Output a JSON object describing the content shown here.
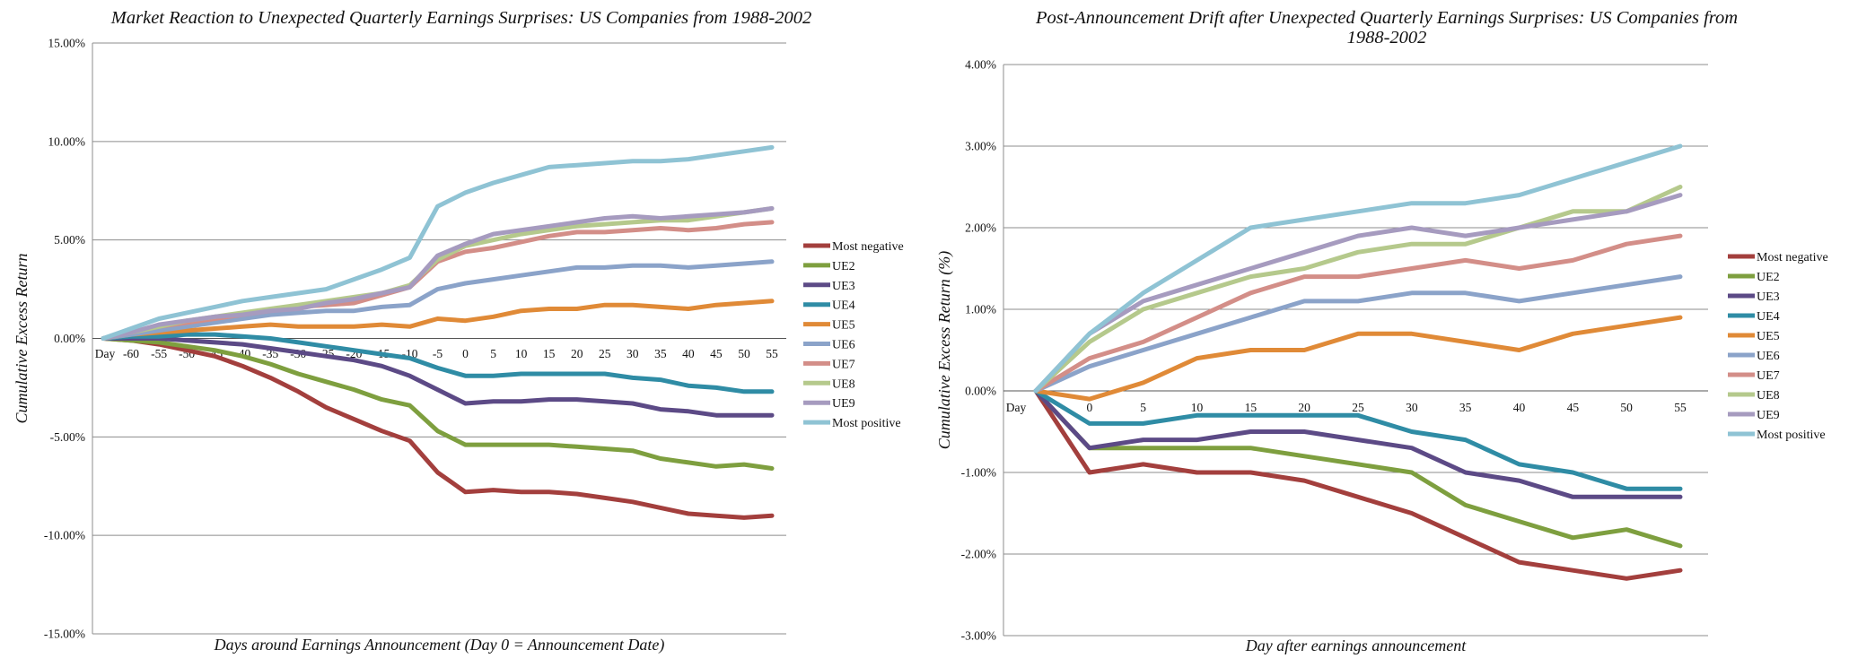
{
  "chart_data": [
    {
      "type": "line",
      "title": "Market Reaction to Unexpected Quarterly Earnings Surprises: US Companies from 1988-2002",
      "xlabel": "Days around Earnings Announcement (Day 0 = Announcement Date)",
      "ylabel": "Cumulative Excess Return",
      "categories": [
        "Day",
        "-60",
        "-55",
        "-50",
        "-45",
        "-40",
        "-35",
        "-30",
        "-25",
        "-20",
        "-15",
        "-10",
        "-5",
        "0",
        "5",
        "10",
        "15",
        "20",
        "25",
        "30",
        "35",
        "40",
        "45",
        "50",
        "55"
      ],
      "ylim": [
        -15,
        15
      ],
      "yticks": [
        "-15.00%",
        "-10.00%",
        "-5.00%",
        "0.00%",
        "5.00%",
        "10.00%",
        "15.00%"
      ],
      "grid": true,
      "legend_position": "right",
      "series": [
        {
          "name": "Most negative",
          "color": "#A33F3D",
          "values": [
            0,
            -0.1,
            -0.3,
            -0.6,
            -0.9,
            -1.4,
            -2.0,
            -2.7,
            -3.5,
            -4.1,
            -4.7,
            -5.2,
            -6.8,
            -7.8,
            -7.7,
            -7.8,
            -7.8,
            -7.9,
            -8.1,
            -8.3,
            -8.6,
            -8.9,
            -9.0,
            -9.1,
            -9.0
          ]
        },
        {
          "name": "UE2",
          "color": "#7E9F3F",
          "values": [
            0,
            -0.1,
            -0.2,
            -0.4,
            -0.6,
            -0.9,
            -1.3,
            -1.8,
            -2.2,
            -2.6,
            -3.1,
            -3.4,
            -4.7,
            -5.4,
            -5.4,
            -5.4,
            -5.4,
            -5.5,
            -5.6,
            -5.7,
            -6.1,
            -6.3,
            -6.5,
            -6.4,
            -6.6
          ]
        },
        {
          "name": "UE3",
          "color": "#5C4A86",
          "values": [
            0,
            0,
            0,
            -0.1,
            -0.2,
            -0.3,
            -0.5,
            -0.7,
            -0.9,
            -1.1,
            -1.4,
            -1.9,
            -2.6,
            -3.3,
            -3.2,
            -3.2,
            -3.1,
            -3.1,
            -3.2,
            -3.3,
            -3.6,
            -3.7,
            -3.9,
            -3.9,
            -3.9
          ]
        },
        {
          "name": "UE4",
          "color": "#2F8CA5",
          "values": [
            0,
            0.1,
            0.1,
            0.2,
            0.2,
            0.1,
            0,
            -0.2,
            -0.4,
            -0.6,
            -0.8,
            -1.0,
            -1.5,
            -1.9,
            -1.9,
            -1.8,
            -1.8,
            -1.8,
            -1.8,
            -2.0,
            -2.1,
            -2.4,
            -2.5,
            -2.7,
            -2.7
          ]
        },
        {
          "name": "UE5",
          "color": "#E08A37",
          "values": [
            0,
            0.2,
            0.3,
            0.4,
            0.5,
            0.6,
            0.7,
            0.6,
            0.6,
            0.6,
            0.7,
            0.6,
            1.0,
            0.9,
            1.1,
            1.4,
            1.5,
            1.5,
            1.7,
            1.7,
            1.6,
            1.5,
            1.7,
            1.8,
            1.9
          ]
        },
        {
          "name": "UE6",
          "color": "#8BA3C9",
          "values": [
            0,
            0.2,
            0.4,
            0.6,
            0.8,
            1.0,
            1.2,
            1.3,
            1.4,
            1.4,
            1.6,
            1.7,
            2.5,
            2.8,
            3.0,
            3.2,
            3.4,
            3.6,
            3.6,
            3.7,
            3.7,
            3.6,
            3.7,
            3.8,
            3.9
          ]
        },
        {
          "name": "UE7",
          "color": "#D38E88",
          "values": [
            0,
            0.3,
            0.6,
            0.8,
            1.0,
            1.2,
            1.4,
            1.6,
            1.7,
            1.8,
            2.2,
            2.6,
            3.9,
            4.4,
            4.6,
            4.9,
            5.2,
            5.4,
            5.4,
            5.5,
            5.6,
            5.5,
            5.6,
            5.8,
            5.9
          ]
        },
        {
          "name": "UE8",
          "color": "#B5C98C",
          "values": [
            0,
            0.3,
            0.6,
            0.9,
            1.1,
            1.3,
            1.5,
            1.7,
            1.9,
            2.1,
            2.3,
            2.7,
            4.0,
            4.7,
            5.0,
            5.3,
            5.5,
            5.7,
            5.8,
            5.9,
            6.0,
            6.0,
            6.2,
            6.4,
            6.6
          ]
        },
        {
          "name": "UE9",
          "color": "#A69BBF",
          "values": [
            0,
            0.3,
            0.7,
            0.9,
            1.1,
            1.2,
            1.4,
            1.5,
            1.8,
            2.0,
            2.3,
            2.6,
            4.2,
            4.8,
            5.3,
            5.5,
            5.7,
            5.9,
            6.1,
            6.2,
            6.1,
            6.2,
            6.3,
            6.4,
            6.6
          ]
        },
        {
          "name": "Most positive",
          "color": "#8FC3D4",
          "values": [
            0,
            0.5,
            1.0,
            1.3,
            1.6,
            1.9,
            2.1,
            2.3,
            2.5,
            3.0,
            3.5,
            4.1,
            6.7,
            7.4,
            7.9,
            8.3,
            8.7,
            8.8,
            8.9,
            9.0,
            9.0,
            9.1,
            9.3,
            9.5,
            9.7
          ]
        }
      ]
    },
    {
      "type": "line",
      "title": "Post-Announcement Drift after Unexpected Quarterly Earnings Surprises: US Companies from 1988-2002",
      "title_lines": [
        "Post-Announcement Drift after Unexpected Quarterly Earnings Surprises: US Companies from",
        "1988-2002"
      ],
      "xlabel": "Day after earnings announcement",
      "ylabel": "Cumulative Excess Return (%)",
      "categories": [
        "Day",
        "0",
        "5",
        "10",
        "15",
        "20",
        "25",
        "30",
        "35",
        "40",
        "45",
        "50",
        "55"
      ],
      "ylim": [
        -3,
        4
      ],
      "yticks": [
        "-3.00%",
        "-2.00%",
        "-1.00%",
        "0.00%",
        "1.00%",
        "2.00%",
        "3.00%",
        "4.00%"
      ],
      "grid": true,
      "legend_position": "right",
      "series": [
        {
          "name": "Most negative",
          "color": "#A33F3D",
          "values": [
            0,
            -1.0,
            -0.9,
            -1.0,
            -1.0,
            -1.1,
            -1.3,
            -1.5,
            -1.8,
            -2.1,
            -2.2,
            -2.3,
            -2.2
          ]
        },
        {
          "name": "UE2",
          "color": "#7E9F3F",
          "values": [
            0,
            -0.7,
            -0.7,
            -0.7,
            -0.7,
            -0.8,
            -0.9,
            -1.0,
            -1.4,
            -1.6,
            -1.8,
            -1.7,
            -1.9
          ]
        },
        {
          "name": "UE3",
          "color": "#5C4A86",
          "values": [
            0,
            -0.7,
            -0.6,
            -0.6,
            -0.5,
            -0.5,
            -0.6,
            -0.7,
            -1.0,
            -1.1,
            -1.3,
            -1.3,
            -1.3
          ]
        },
        {
          "name": "UE4",
          "color": "#2F8CA5",
          "values": [
            0,
            -0.4,
            -0.4,
            -0.3,
            -0.3,
            -0.3,
            -0.3,
            -0.5,
            -0.6,
            -0.9,
            -1.0,
            -1.2,
            -1.2
          ]
        },
        {
          "name": "UE5",
          "color": "#E08A37",
          "values": [
            0,
            -0.1,
            0.1,
            0.4,
            0.5,
            0.5,
            0.7,
            0.7,
            0.6,
            0.5,
            0.7,
            0.8,
            0.9
          ]
        },
        {
          "name": "UE6",
          "color": "#8BA3C9",
          "values": [
            0,
            0.3,
            0.5,
            0.7,
            0.9,
            1.1,
            1.1,
            1.2,
            1.2,
            1.1,
            1.2,
            1.3,
            1.4
          ]
        },
        {
          "name": "UE7",
          "color": "#D38E88",
          "values": [
            0,
            0.4,
            0.6,
            0.9,
            1.2,
            1.4,
            1.4,
            1.5,
            1.6,
            1.5,
            1.6,
            1.8,
            1.9
          ]
        },
        {
          "name": "UE8",
          "color": "#B5C98C",
          "values": [
            0,
            0.6,
            1.0,
            1.2,
            1.4,
            1.5,
            1.7,
            1.8,
            1.8,
            2.0,
            2.2,
            2.2,
            2.5
          ]
        },
        {
          "name": "UE9",
          "color": "#A69BBF",
          "values": [
            0,
            0.7,
            1.1,
            1.3,
            1.5,
            1.7,
            1.9,
            2.0,
            1.9,
            2.0,
            2.1,
            2.2,
            2.4
          ]
        },
        {
          "name": "Most positive",
          "color": "#8FC3D4",
          "values": [
            0,
            0.7,
            1.2,
            1.6,
            2.0,
            2.1,
            2.2,
            2.3,
            2.3,
            2.4,
            2.6,
            2.8,
            3.0
          ]
        }
      ]
    }
  ]
}
